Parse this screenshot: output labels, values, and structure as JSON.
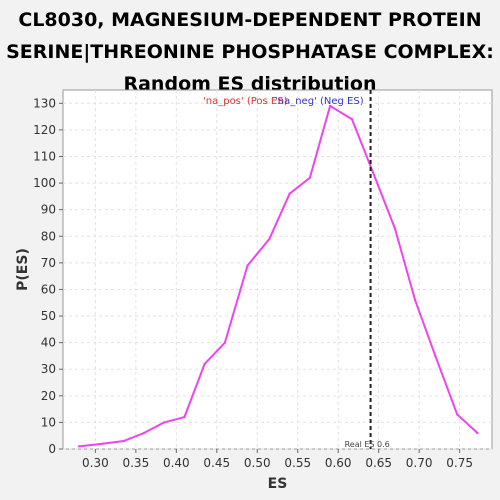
{
  "title_lines": [
    "CL8030, MAGNESIUM-DEPENDENT PROTEIN",
    "SERINE|THREONINE PHOSPHATASE COMPLEX:",
    "Random ES distribution"
  ],
  "chart_data": {
    "type": "line",
    "xlabel": "ES",
    "ylabel": "P(ES)",
    "xlim": [
      0.26,
      0.79
    ],
    "ylim": [
      0,
      135
    ],
    "xticks": [
      0.3,
      0.35,
      0.4,
      0.45,
      0.5,
      0.55,
      0.6,
      0.65,
      0.7,
      0.75
    ],
    "xtick_labels": [
      "0.30",
      "0.35",
      "0.40",
      "0.45",
      "0.50",
      "0.55",
      "0.60",
      "0.65",
      "0.70",
      "0.75"
    ],
    "yticks": [
      0,
      10,
      20,
      30,
      40,
      50,
      60,
      70,
      80,
      90,
      100,
      110,
      120,
      130
    ],
    "ytick_labels": [
      "0",
      "10",
      "20",
      "30",
      "40",
      "50",
      "60",
      "70",
      "80",
      "90",
      "100",
      "110",
      "120",
      "130"
    ],
    "grid": true,
    "series": [
      {
        "color": "#ee44ee",
        "x": [
          0.28,
          0.31,
          0.335,
          0.36,
          0.385,
          0.41,
          0.435,
          0.46,
          0.488,
          0.515,
          0.54,
          0.565,
          0.59,
          0.617,
          0.643,
          0.67,
          0.695,
          0.72,
          0.747,
          0.772
        ],
        "y": [
          1,
          2,
          3,
          6,
          10,
          12,
          32,
          40,
          69,
          79,
          96,
          102,
          129,
          124,
          104,
          83,
          56,
          35,
          13,
          6
        ]
      }
    ],
    "legend": [
      {
        "label": "'na_pos' (Pos ES)",
        "color": "#dd3333"
      },
      {
        "label": "'na_neg' (Neg ES)",
        "color": "#3333cc"
      }
    ],
    "legend_placement": "top-center",
    "annotations": [
      {
        "type": "vline",
        "x": 0.64,
        "style": "dashed",
        "color": "#222222",
        "label": "Real ES 0.6"
      }
    ]
  }
}
